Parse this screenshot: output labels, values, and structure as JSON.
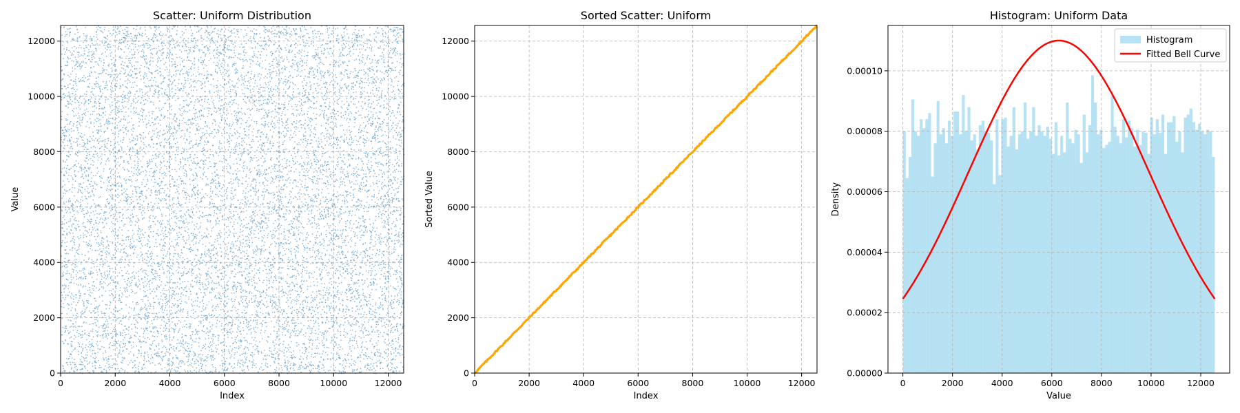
{
  "chart_data": [
    {
      "type": "scatter",
      "title": "Scatter: Uniform Distribution",
      "xlabel": "Index",
      "ylabel": "Value",
      "xlim": [
        0,
        12566
      ],
      "ylim": [
        0,
        12566
      ],
      "xticks": [
        0,
        2000,
        4000,
        6000,
        8000,
        10000,
        12000
      ],
      "yticks": [
        0,
        2000,
        4000,
        6000,
        8000,
        10000,
        12000
      ],
      "grid": true,
      "series": [
        {
          "n_points": 12566,
          "distribution": "uniform",
          "range": [
            0,
            12566
          ],
          "color": "#1f77b4",
          "alpha": 0.6
        }
      ]
    },
    {
      "type": "scatter",
      "title": "Sorted Scatter: Uniform",
      "xlabel": "Index",
      "ylabel": "Sorted Value",
      "xlim": [
        0,
        12566
      ],
      "ylim": [
        0,
        12566
      ],
      "xticks": [
        0,
        2000,
        4000,
        6000,
        8000,
        10000,
        12000
      ],
      "yticks": [
        0,
        2000,
        4000,
        6000,
        8000,
        10000,
        12000
      ],
      "grid": true,
      "series": [
        {
          "line": [
            [
              0,
              0
            ],
            [
              12566,
              12566
            ]
          ],
          "color": "#ffa500"
        }
      ]
    },
    {
      "type": "bar",
      "title": "Histogram: Uniform Data",
      "xlabel": "Value",
      "ylabel": "Density",
      "xlim": [
        -600,
        13166
      ],
      "ylim": [
        0,
        0.000115
      ],
      "xticks": [
        0,
        2000,
        4000,
        6000,
        8000,
        10000,
        12000
      ],
      "yticks": [
        0,
        2e-05,
        4e-05,
        6e-05,
        8e-05,
        0.0001
      ],
      "ytick_labels": [
        "0.00000",
        "0.00002",
        "0.00004",
        "0.00006",
        "0.00008",
        "0.00010"
      ],
      "grid": true,
      "legend": "top-right",
      "histogram": {
        "name": "Histogram",
        "color": "#87ceeb",
        "bin_range": [
          0,
          12566
        ],
        "values": [
          8e-05,
          6.45e-05,
          7.15e-05,
          9.05e-05,
          8e-05,
          7.85e-05,
          8.4e-05,
          8.1e-05,
          8.4e-05,
          8.6e-05,
          6.5e-05,
          7.6e-05,
          9e-05,
          7.9e-05,
          8.1e-05,
          7.6e-05,
          8.35e-05,
          7.85e-05,
          8.65e-05,
          8.65e-05,
          7.9e-05,
          9.2e-05,
          8e-05,
          8.8e-05,
          7.7e-05,
          7.9e-05,
          7.4e-05,
          8.2e-05,
          8.35e-05,
          8e-05,
          7.95e-05,
          7.7e-05,
          6.25e-05,
          8.4e-05,
          6.55e-05,
          8.4e-05,
          8.45e-05,
          7.5e-05,
          7.85e-05,
          8.8e-05,
          7.4e-05,
          7.9e-05,
          8e-05,
          8.95e-05,
          7.75e-05,
          8e-05,
          8.8e-05,
          7.85e-05,
          8.2e-05,
          8e-05,
          7.85e-05,
          8.15e-05,
          7.75e-05,
          7.25e-05,
          8.3e-05,
          7.2e-05,
          7.85e-05,
          7.3e-05,
          8.95e-05,
          7.75e-05,
          7.6e-05,
          8.05e-05,
          7.9e-05,
          6.95e-05,
          8.55e-05,
          7.3e-05,
          8.2e-05,
          9.85e-05,
          8.95e-05,
          7.9e-05,
          8.05e-05,
          7.45e-05,
          7.55e-05,
          7.65e-05,
          9.2e-05,
          8.15e-05,
          7.85e-05,
          7.6e-05,
          8.4e-05,
          7.8e-05,
          8.35e-05,
          8.1e-05,
          7.5e-05,
          8.05e-05,
          7.55e-05,
          8e-05,
          7.95e-05,
          7.25e-05,
          8.45e-05,
          7.9e-05,
          8.4e-05,
          7.95e-05,
          8.55e-05,
          7.25e-05,
          8.3e-05,
          8.3e-05,
          8.5e-05,
          7.65e-05,
          8e-05,
          7.3e-05,
          8.45e-05,
          8.55e-05,
          8.75e-05,
          8.3e-05,
          8.05e-05,
          8.25e-05,
          8e-05,
          7.9e-05,
          8.05e-05,
          8e-05,
          7.15e-05
        ]
      },
      "curve": {
        "name": "Fitted Bell Curve",
        "color": "#ff0000",
        "mean": 6283,
        "std": 3628,
        "x_range": [
          0,
          12566
        ],
        "peak_density": 0.00011
      }
    }
  ]
}
